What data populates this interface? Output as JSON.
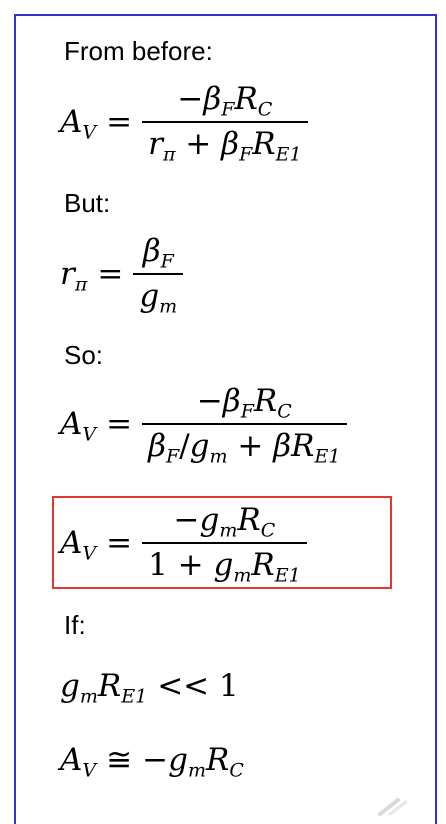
{
  "labels": {
    "from_before": "From before:",
    "but": "But:",
    "so": "So:",
    "if": "If:"
  },
  "colors": {
    "frame_border": "#2E36C8",
    "highlight_border": "#E03A2E"
  },
  "icons": [
    "pen-icon"
  ]
}
